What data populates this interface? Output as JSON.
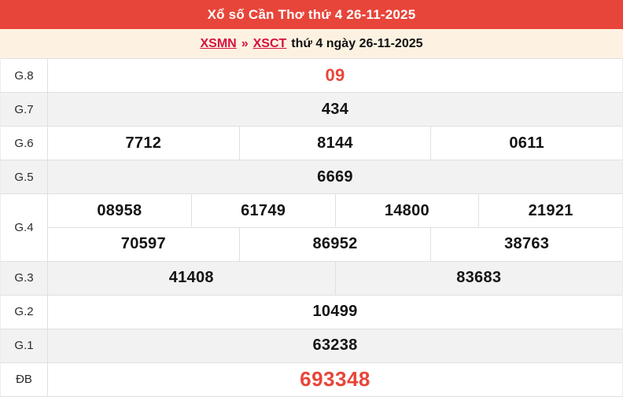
{
  "header": {
    "title": "Xổ số Cần Thơ thứ 4 26-11-2025"
  },
  "breadcrumb": {
    "xsmn": "XSMN",
    "separator": "»",
    "xsct": "XSCT",
    "text": "thứ 4 ngày 26-11-2025"
  },
  "results": {
    "g8": {
      "label": "G.8",
      "v0": "09"
    },
    "g7": {
      "label": "G.7",
      "v0": "434"
    },
    "g6": {
      "label": "G.6",
      "v0": "7712",
      "v1": "8144",
      "v2": "0611"
    },
    "g5": {
      "label": "G.5",
      "v0": "6669"
    },
    "g4": {
      "label": "G.4",
      "line1": {
        "v0": "08958",
        "v1": "61749",
        "v2": "14800",
        "v3": "21921"
      },
      "line2": {
        "v0": "70597",
        "v1": "86952",
        "v2": "38763"
      }
    },
    "g3": {
      "label": "G.3",
      "v0": "41408",
      "v1": "83683"
    },
    "g2": {
      "label": "G.2",
      "v0": "10499"
    },
    "g1": {
      "label": "G.1",
      "v0": "63238"
    },
    "db": {
      "label": "ĐB",
      "v0": "693348"
    }
  },
  "colors": {
    "header_bg": "#e8453a",
    "breadcrumb_bg": "#fdf2e2",
    "link_red": "#d80f3e",
    "value_red": "#e8453a",
    "shaded_row_bg": "#f2f2f2",
    "border": "#e0e0e0"
  }
}
